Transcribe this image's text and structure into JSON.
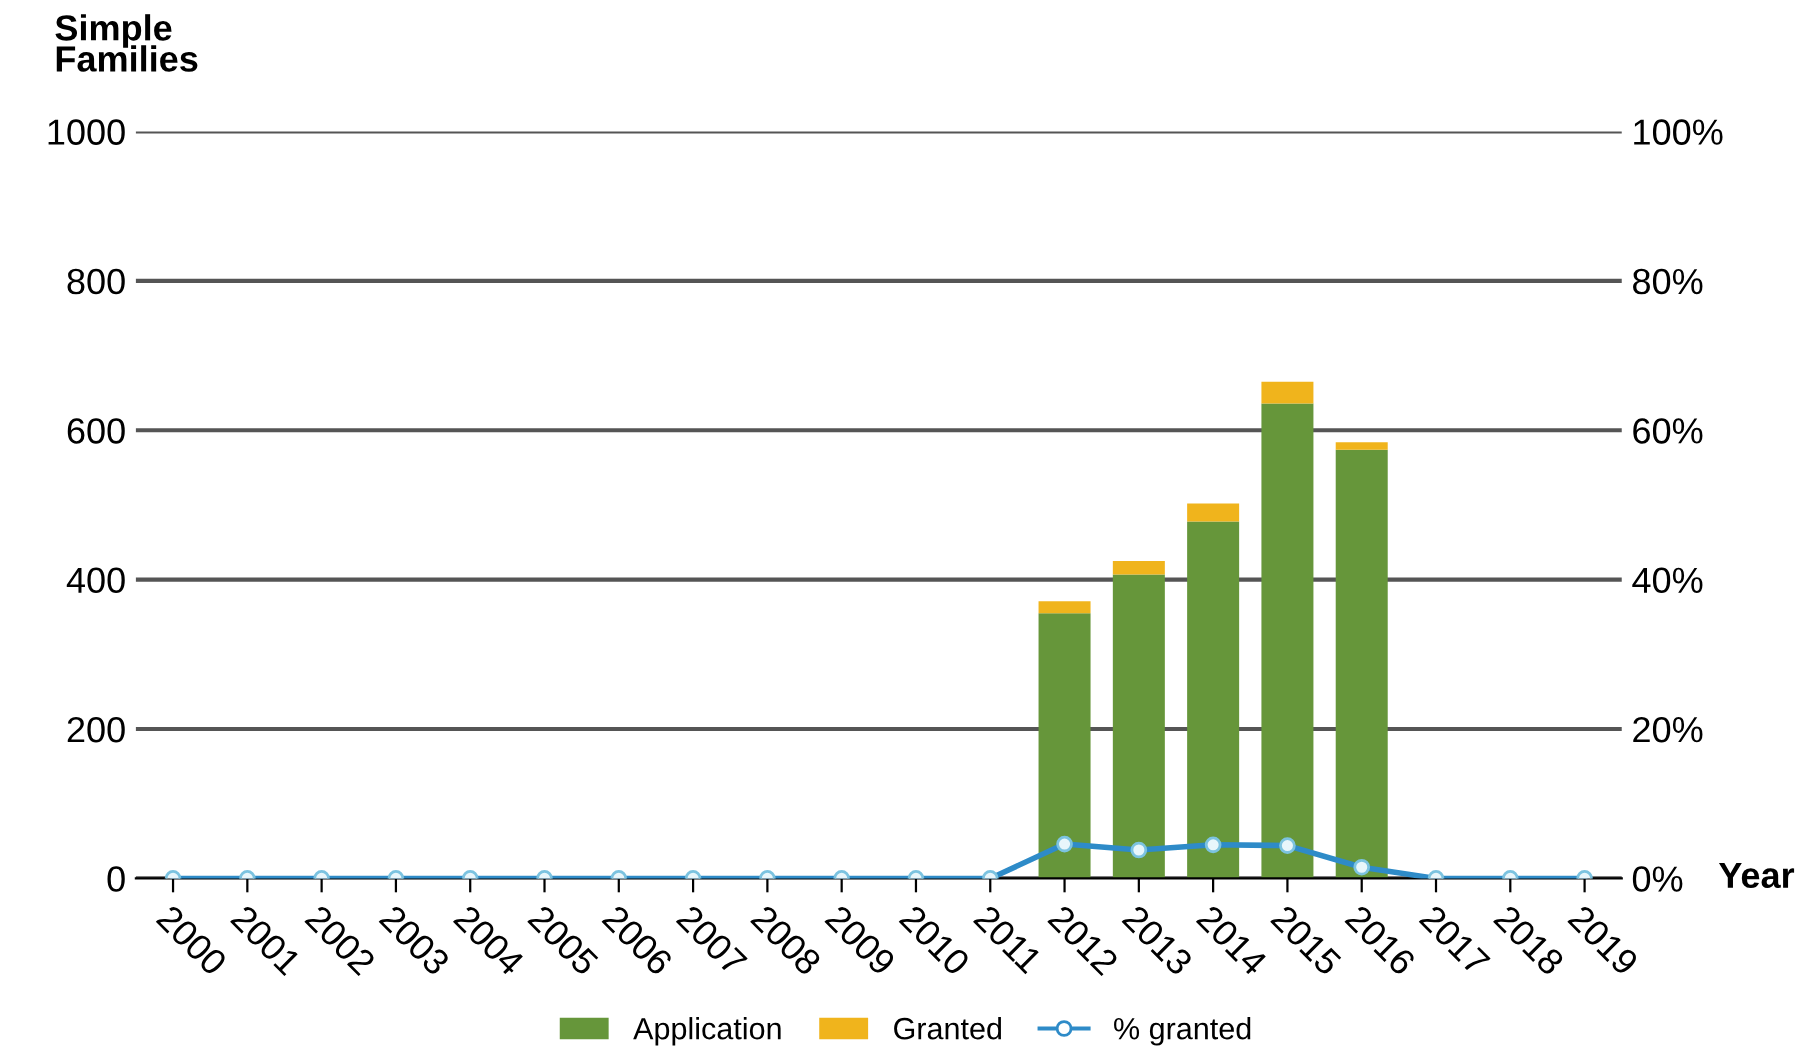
{
  "chart_data": {
    "type": "bar",
    "stacked": true,
    "xlabel": "Year",
    "ylabel": "Simple Families",
    "categories": [
      "2000",
      "2001",
      "2002",
      "2003",
      "2004",
      "2005",
      "2006",
      "2007",
      "2008",
      "2009",
      "2010",
      "2011",
      "2012",
      "2013",
      "2014",
      "2015",
      "2016",
      "2017",
      "2018",
      "2019"
    ],
    "series": [
      {
        "name": "Application",
        "color": "#66963a",
        "values": [
          0,
          0,
          0,
          0,
          0,
          0,
          0,
          0,
          0,
          0,
          0,
          0,
          355,
          407,
          478,
          636,
          574,
          0,
          0,
          0
        ]
      },
      {
        "name": "Granted",
        "color": "#f0b41c",
        "values": [
          0,
          0,
          0,
          0,
          0,
          0,
          0,
          0,
          0,
          0,
          0,
          0,
          16,
          18,
          24,
          29,
          10,
          0,
          0,
          0
        ]
      },
      {
        "name": "% granted",
        "type": "line",
        "axis": "y2",
        "color": "#2e8bc8",
        "marker": "circle",
        "values": [
          0,
          0,
          0,
          0,
          0,
          0,
          0,
          0,
          0,
          0,
          0,
          0,
          4.6,
          3.8,
          4.5,
          4.4,
          1.5,
          0,
          0,
          0
        ]
      }
    ],
    "ylim": [
      0,
      1000
    ],
    "yticks": [
      0,
      200,
      400,
      600,
      800,
      1000
    ],
    "y2lim": [
      0,
      100
    ],
    "y2ticks": [
      {
        "value": 0,
        "label": "0%"
      },
      {
        "value": 20,
        "label": "20%"
      },
      {
        "value": 40,
        "label": "40%"
      },
      {
        "value": 60,
        "label": "60%"
      },
      {
        "value": 80,
        "label": "80%"
      },
      {
        "value": 100,
        "label": "100%"
      }
    ],
    "grid": "y",
    "legend": "bottom"
  }
}
